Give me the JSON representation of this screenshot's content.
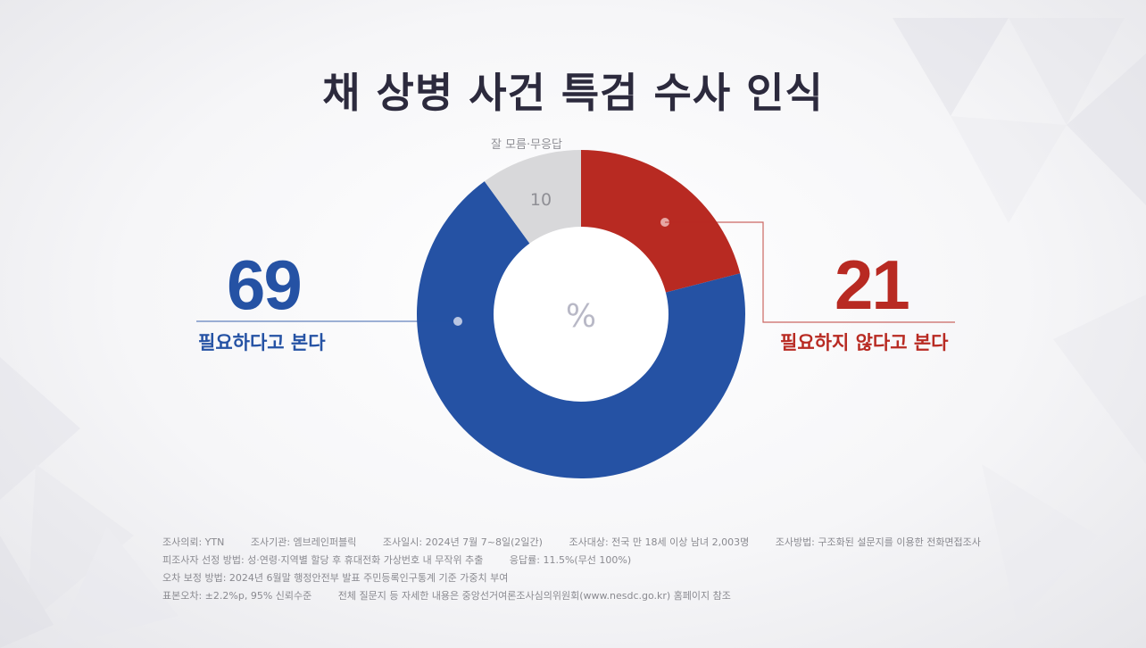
{
  "title": "채 상병 사건 특검 수사 인식",
  "center_unit": "%",
  "gray_label": "잘 모름·무응답",
  "left_label": "필요하다고 본다",
  "right_label": "필요하지 않다고 본다",
  "colors": {
    "blue": "#2552a4",
    "red": "#b82a22",
    "gray": "#d8d8da",
    "title": "#2c2a3d"
  },
  "chart_data": {
    "type": "pie",
    "categories": [
      "필요하지 않다고 본다",
      "필요하다고 본다",
      "잘 모름·무응답"
    ],
    "values": [
      21,
      69,
      10
    ],
    "unit": "%"
  },
  "footer": {
    "row1": [
      "조사의뢰: YTN",
      "조사기관: 엠브레인퍼블릭",
      "조사일시: 2024년 7월 7~8일(2일간)",
      "조사대상: 전국 만 18세 이상 남녀 2,003명",
      "조사방법: 구조화된 설문지를 이용한 전화면접조사"
    ],
    "row2": [
      "피조사자 선정 방법: 성·연령·지역별 할당 후 휴대전화 가상번호 내 무작위 추출",
      "응답률: 11.5%(무선 100%)",
      "오차 보정 방법: 2024년 6월말 행정안전부 발표 주민등록인구통계 기준 가중치 부여"
    ],
    "row3": [
      "표본오차: ±2.2%p, 95% 신뢰수준",
      "전체 질문지 등 자세한 내용은 중앙선거여론조사심의위원회(www.nesdc.go.kr) 홈페이지 참조"
    ]
  }
}
